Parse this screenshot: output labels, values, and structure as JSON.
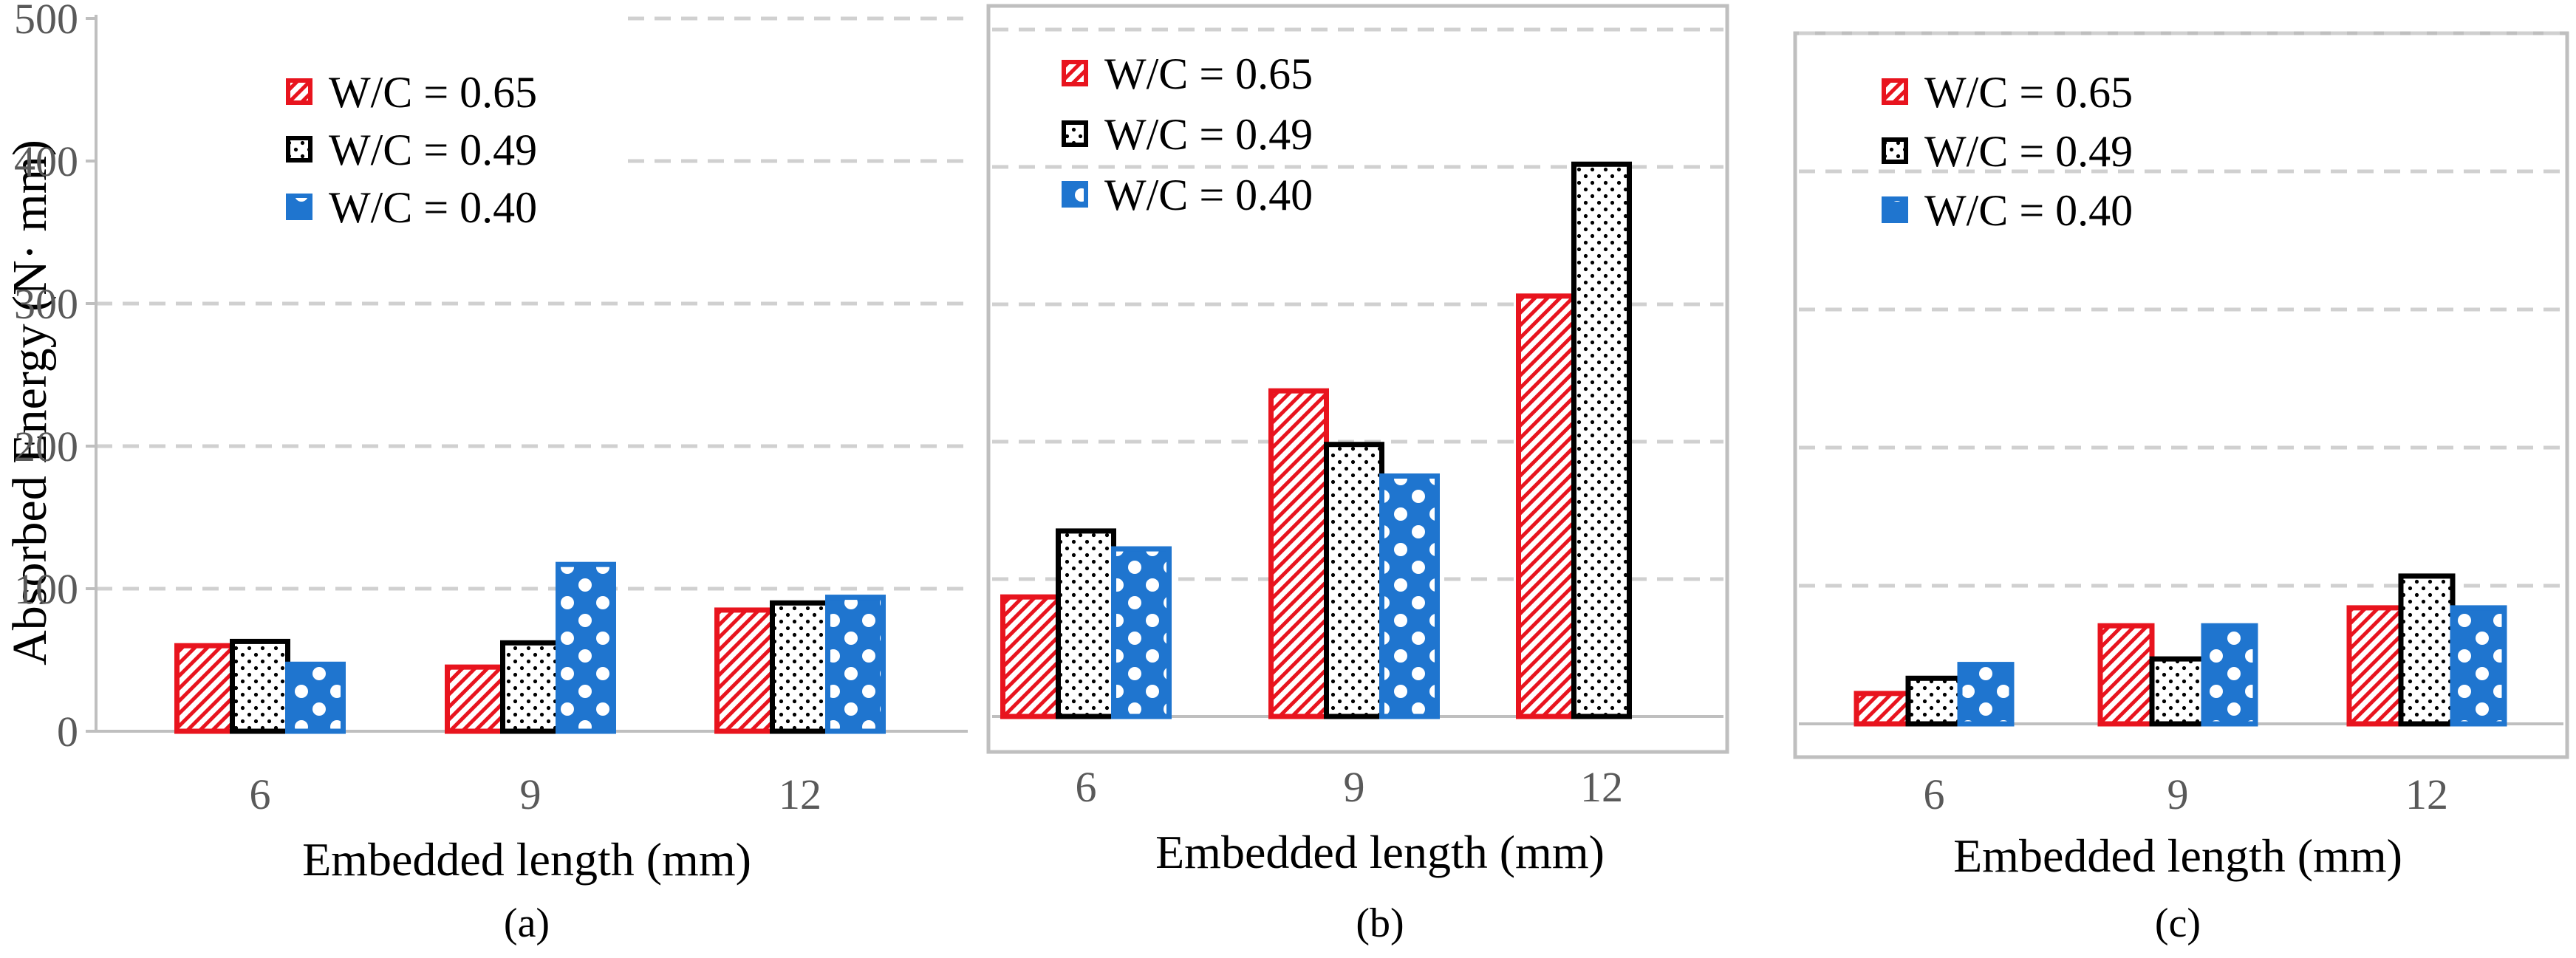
{
  "figure": {
    "y_axis_label": "Absorbed Energy (N· mm)",
    "colors": {
      "red": "#e8141e",
      "black": "#000000",
      "blue": "#1f75cf",
      "grid": "#d0d0d0",
      "frame": "#bfbfbf",
      "tick_text": "#595959"
    }
  },
  "chart_data": [
    {
      "type": "bar",
      "panel_label": "(a)",
      "categories": [
        "6",
        "9",
        "12"
      ],
      "series": [
        {
          "name": "W/C = 0.65",
          "values": [
            60,
            45,
            85
          ]
        },
        {
          "name": "W/C = 0.49",
          "values": [
            63,
            62,
            90
          ]
        },
        {
          "name": "W/C = 0.40",
          "values": [
            47,
            117,
            94
          ]
        }
      ],
      "xlabel": "Embedded length (mm)",
      "ylabel": "Absorbed Energy (N· mm)",
      "ylim": [
        0,
        500
      ],
      "yticks": [
        "0",
        "100",
        "200",
        "300",
        "400",
        "500"
      ],
      "grid": true,
      "legend_position": "top-left"
    },
    {
      "type": "bar",
      "panel_label": "(b)",
      "categories": [
        "6",
        "9",
        "12"
      ],
      "series": [
        {
          "name": "W/C = 0.65",
          "values": [
            87,
            237,
            306
          ]
        },
        {
          "name": "W/C = 0.49",
          "values": [
            135,
            198,
            402
          ]
        },
        {
          "name": "W/C = 0.40",
          "values": [
            122,
            175,
            null
          ]
        }
      ],
      "xlabel": "Embedded length (mm)",
      "ylabel": "",
      "ylim": [
        0,
        500
      ],
      "grid": true,
      "legend_position": "top-left"
    },
    {
      "type": "bar",
      "panel_label": "(c)",
      "categories": [
        "6",
        "9",
        "12"
      ],
      "series": [
        {
          "name": "W/C = 0.65",
          "values": [
            22,
            71,
            84
          ]
        },
        {
          "name": "W/C = 0.49",
          "values": [
            33,
            47,
            107
          ]
        },
        {
          "name": "W/C = 0.40",
          "values": [
            43,
            71,
            84
          ]
        }
      ],
      "xlabel": "Embedded length (mm)",
      "ylabel": "",
      "ylim": [
        0,
        500
      ],
      "grid": true,
      "legend_position": "top-left"
    }
  ]
}
